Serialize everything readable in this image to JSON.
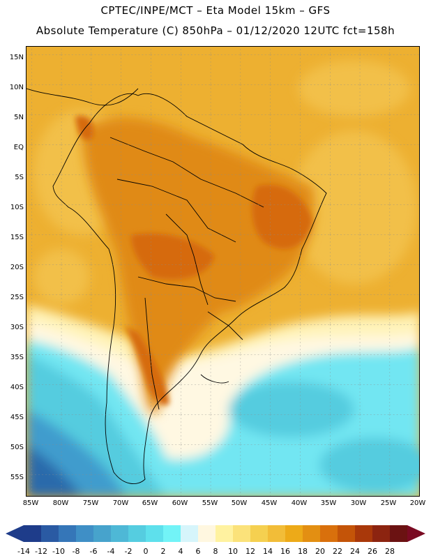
{
  "header": {
    "line1": "CPTEC/INPE/MCT –  Eta Model 15km – GFS",
    "line2": "Absolute Temperature (C) 850hPa – 01/12/2020 12UTC fct=158h"
  },
  "axes": {
    "lat_labels": [
      "15N",
      "10N",
      "5N",
      "EQ",
      "5S",
      "10S",
      "15S",
      "20S",
      "25S",
      "30S",
      "35S",
      "40S",
      "45S",
      "50S",
      "55S"
    ],
    "lon_labels": [
      "85W",
      "80W",
      "75W",
      "70W",
      "65W",
      "60W",
      "55W",
      "50W",
      "45W",
      "40W",
      "35W",
      "30W",
      "25W",
      "20W"
    ]
  },
  "colorbar": {
    "labels": [
      "-14",
      "-12",
      "-10",
      "-8",
      "-6",
      "-4",
      "-2",
      "0",
      "2",
      "4",
      "6",
      "8",
      "10",
      "12",
      "14",
      "16",
      "18",
      "20",
      "22",
      "24",
      "26",
      "28"
    ],
    "colors": [
      "#1e3c8a",
      "#2a5aa3",
      "#3576b8",
      "#3f8fc6",
      "#47a3cc",
      "#4eb8d6",
      "#55cde0",
      "#5ee0ec",
      "#72f3f7",
      "#d6f5fb",
      "#fff7e0",
      "#fff2a0",
      "#fbe27a",
      "#f5d050",
      "#f2bd38",
      "#edaa18",
      "#e38f12",
      "#d9700c",
      "#c45408",
      "#a9380a",
      "#8c2410",
      "#6b1212"
    ],
    "left_cap": "#1e3c8a",
    "right_cap": "#7a0a22"
  },
  "map_colors": {
    "ocean_warm": "#edb031",
    "ocean_warm2": "#f2c04a",
    "land_hot": "#e08a18",
    "land_hotter": "#d66a10",
    "pale": "#fff3b8",
    "cream": "#fff8e2",
    "cold1": "#72e6f2",
    "cold2": "#54ccdf",
    "cold3": "#3f9ccd",
    "cold4": "#2c6aab"
  }
}
